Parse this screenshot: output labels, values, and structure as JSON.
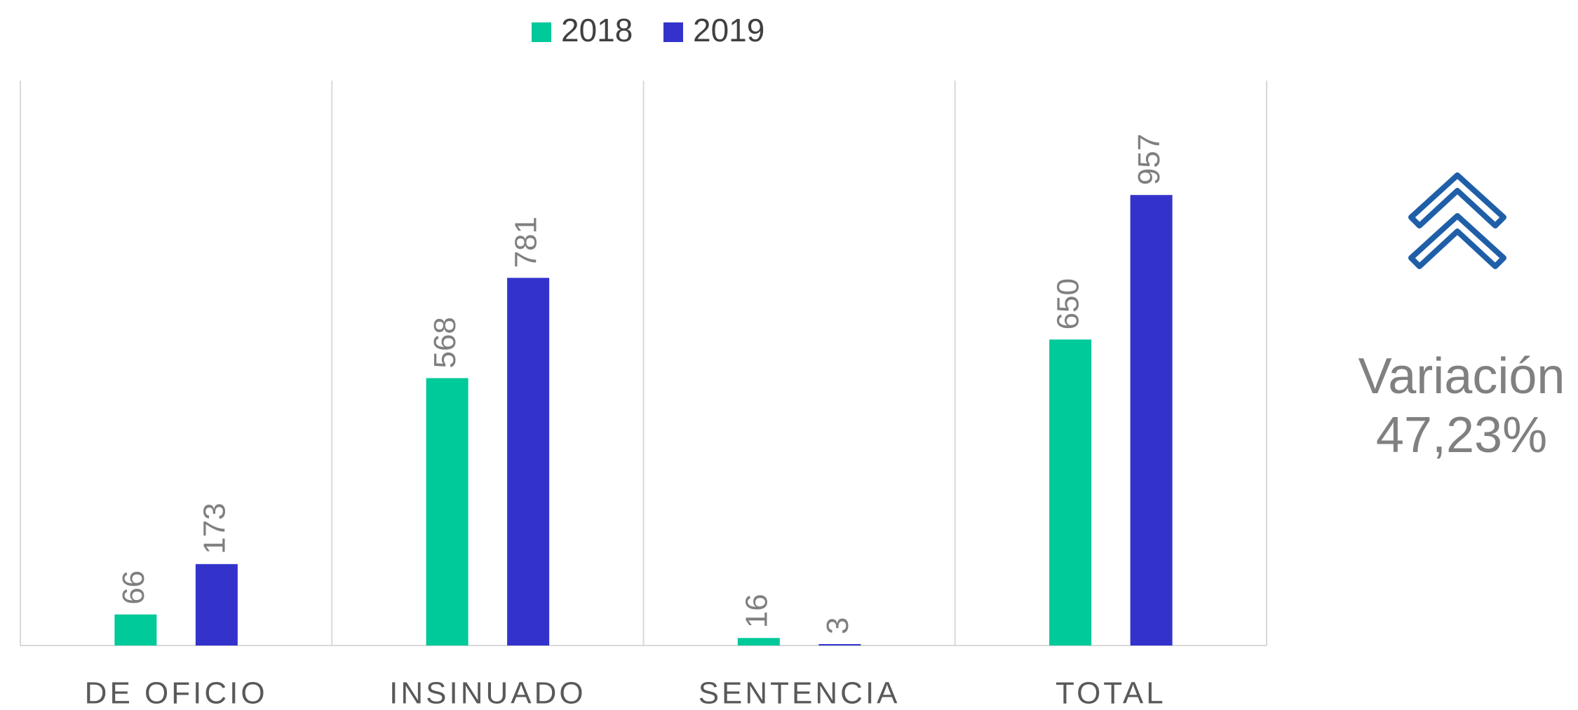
{
  "chart_data": {
    "type": "bar",
    "categories": [
      "DE OFICIO",
      "INSINUADO",
      "SENTENCIA",
      "TOTAL"
    ],
    "series": [
      {
        "name": "2018",
        "color": "#00c99a",
        "values": [
          66,
          568,
          16,
          650
        ]
      },
      {
        "name": "2019",
        "color": "#3333cc",
        "values": [
          173,
          781,
          3,
          957
        ]
      }
    ],
    "ylim": [
      0,
      1200
    ],
    "legend": "top",
    "annotations": [
      "Variación",
      "47,23%"
    ]
  }
}
